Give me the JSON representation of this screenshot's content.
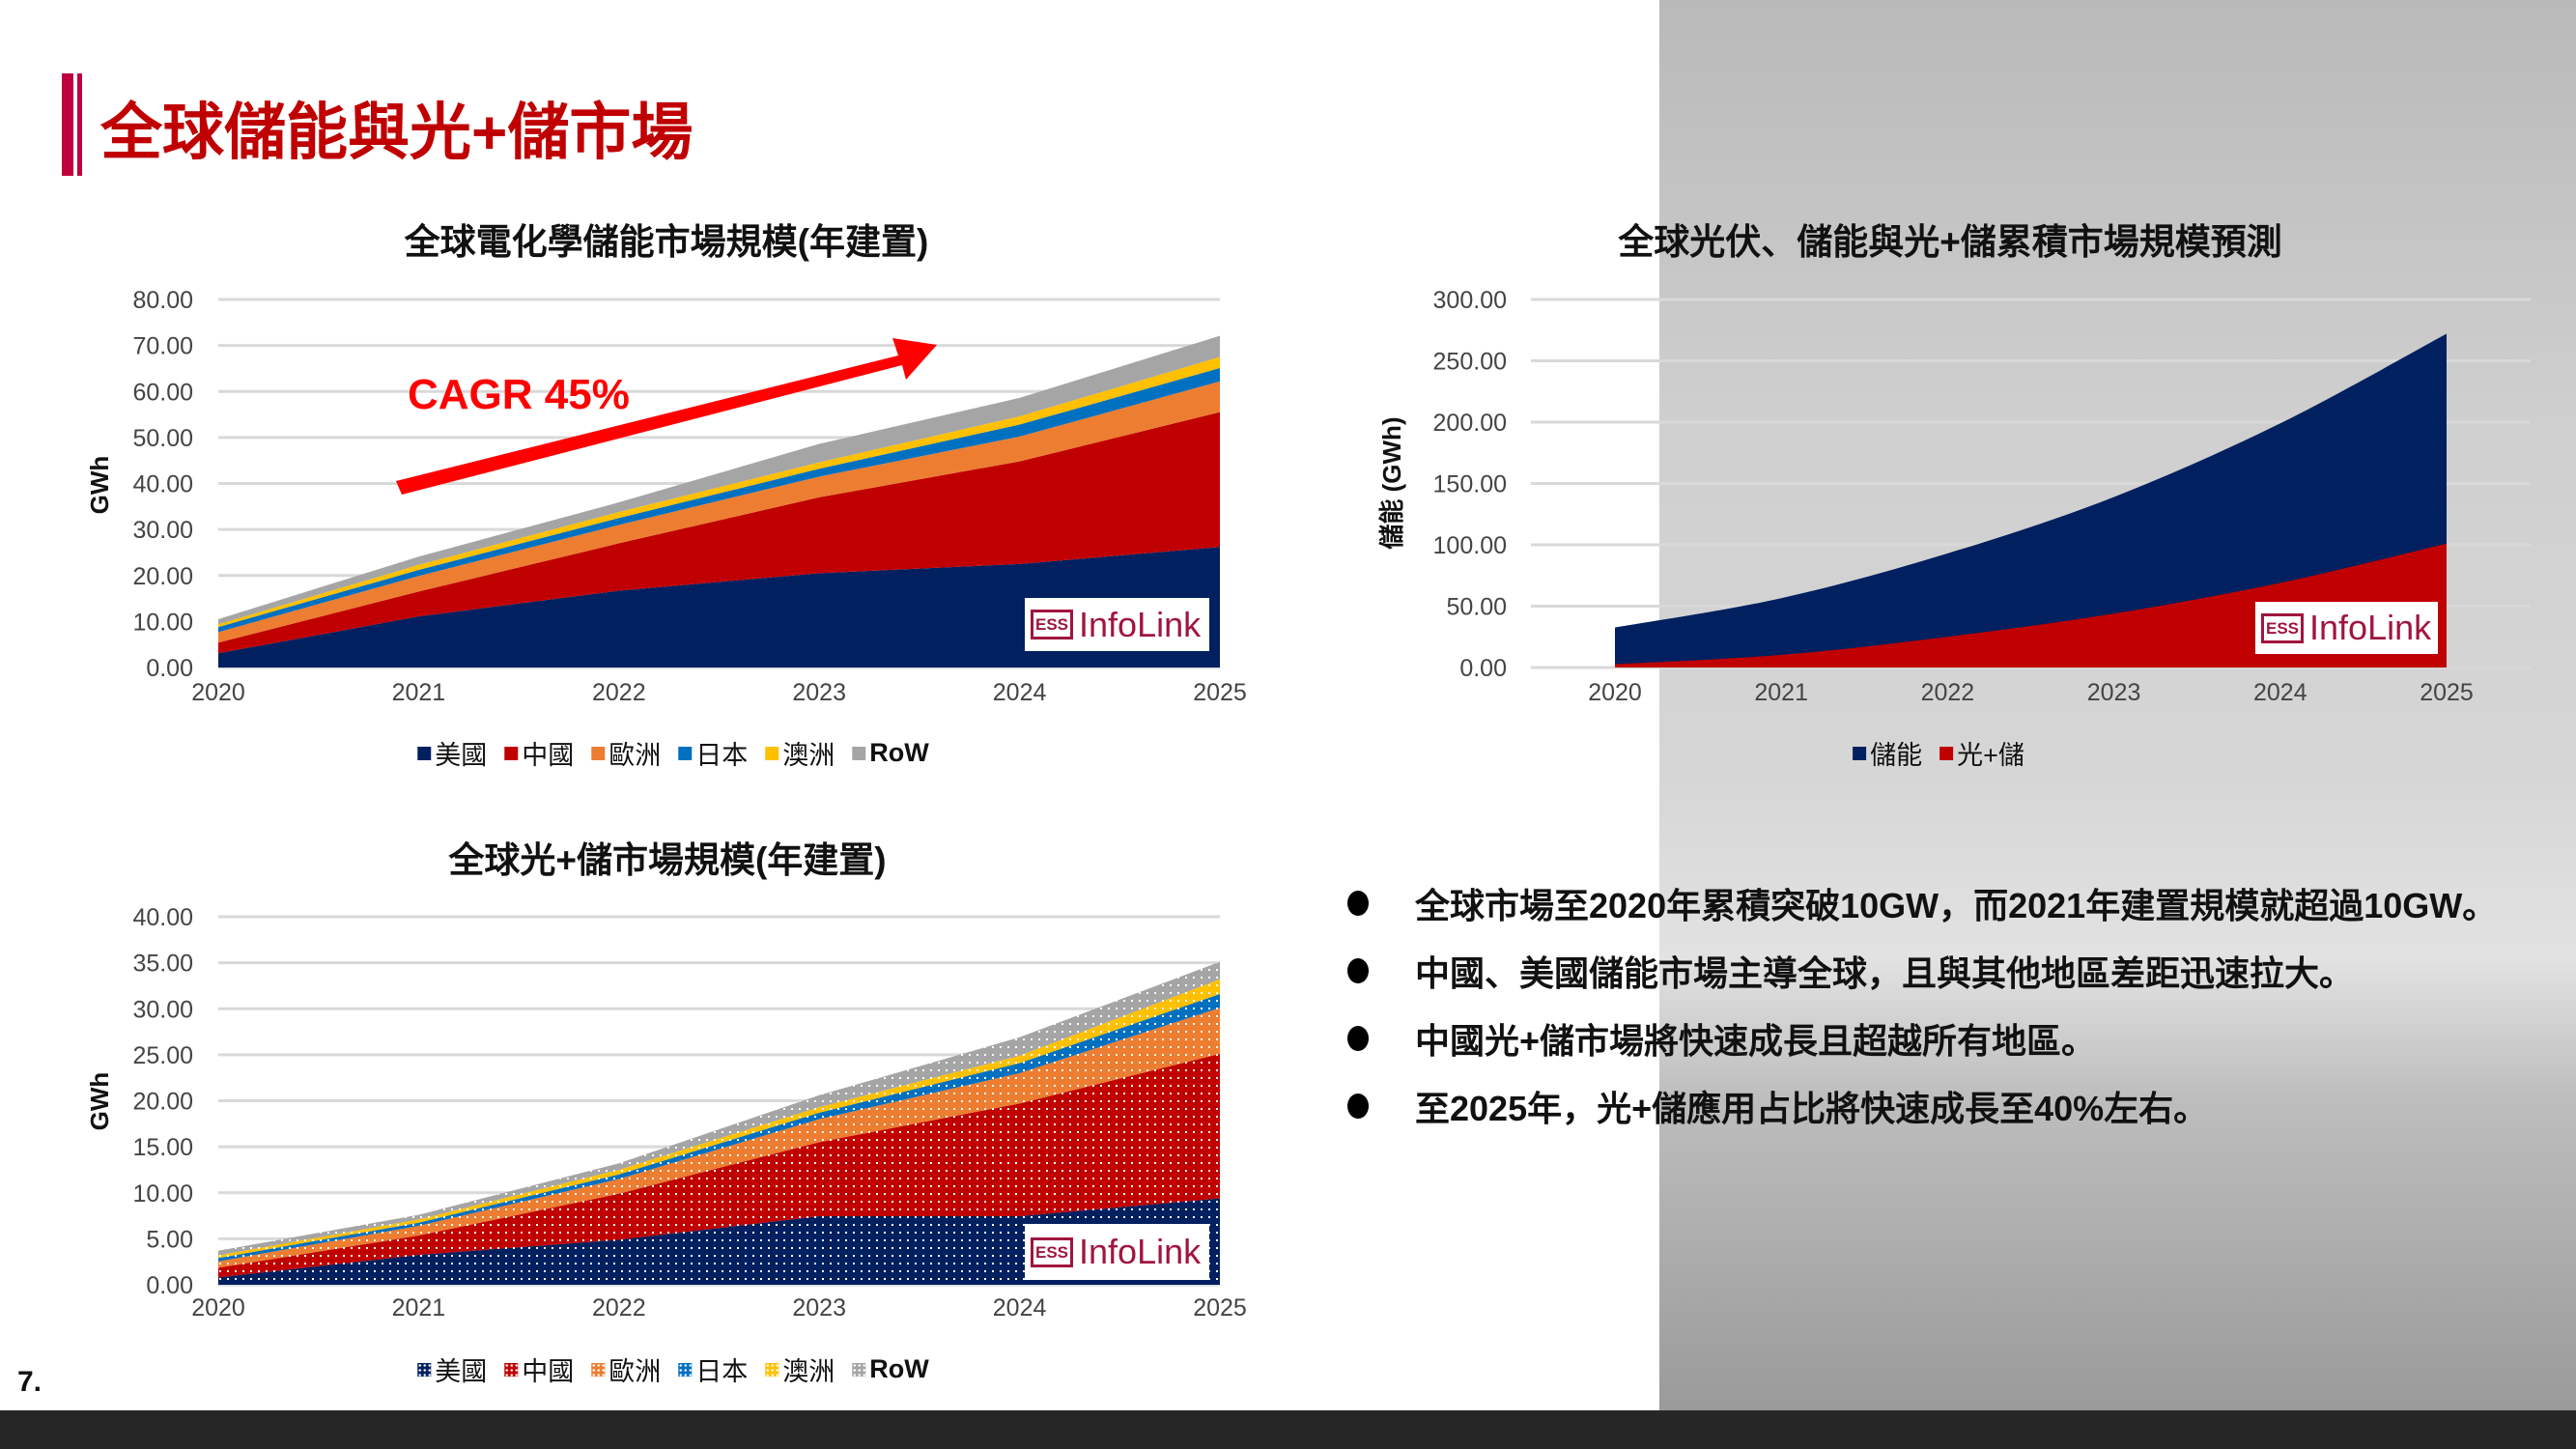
{
  "header": {
    "title": "全球儲能與光+儲市場"
  },
  "page_number": "7.",
  "bullets": [
    "全球市場至2020年累積突破10GW，而2021年建置規模就超過10GW。",
    "中國、美國儲能市場主導全球，且與其他地區差距迅速拉大。",
    "中國光+儲市場將快速成長且超越所有地區。",
    "至2025年，光+儲應用占比將快速成長至40%左右。"
  ],
  "logo": {
    "ess": "ESS",
    "name": "InfoLink"
  },
  "annotation": {
    "cagr": "CAGR 45%"
  },
  "chart_data": [
    {
      "type": "area",
      "stacked": true,
      "title": "全球電化學儲能市場規模(年建置)",
      "ylabel": "GWh",
      "xlabel": "",
      "x": [
        "2020",
        "2021",
        "2022",
        "2023",
        "2024",
        "2025"
      ],
      "ylim": [
        0,
        80
      ],
      "yticks": [
        "0.00",
        "10.00",
        "20.00",
        "30.00",
        "40.00",
        "50.00",
        "60.00",
        "70.00",
        "80.00"
      ],
      "grid": true,
      "legend": "bottom",
      "series": [
        {
          "name": "美國",
          "color": "#002060",
          "values": [
            3.1,
            11.1,
            16.7,
            20.5,
            22.5,
            26.2
          ]
        },
        {
          "name": "中國",
          "color": "#c00000",
          "values": [
            2.3,
            5.4,
            10.3,
            16.5,
            22.3,
            29.3
          ]
        },
        {
          "name": "歐洲",
          "color": "#ed7d31",
          "values": [
            2.3,
            3.4,
            4.0,
            4.5,
            5.4,
            6.7
          ]
        },
        {
          "name": "日本",
          "color": "#0070c0",
          "values": [
            1.1,
            1.3,
            1.5,
            1.7,
            2.6,
            2.9
          ]
        },
        {
          "name": "澳洲",
          "color": "#ffc000",
          "values": [
            0.6,
            1.1,
            1.3,
            1.4,
            1.8,
            2.4
          ]
        },
        {
          "name": "RoW",
          "color": "#a5a5a5",
          "values": [
            1.1,
            1.8,
            2.1,
            4.0,
            4.0,
            4.6
          ]
        }
      ]
    },
    {
      "type": "area",
      "stacked": true,
      "title": "全球光+儲市場規模(年建置)",
      "ylabel": "GWh",
      "xlabel": "",
      "x": [
        "2020",
        "2021",
        "2022",
        "2023",
        "2024",
        "2025"
      ],
      "ylim": [
        0,
        40
      ],
      "yticks": [
        "0.00",
        "5.00",
        "10.00",
        "15.00",
        "20.00",
        "25.00",
        "30.00",
        "35.00",
        "40.00"
      ],
      "grid": true,
      "legend": "bottom",
      "pattern": "dotted",
      "series": [
        {
          "name": "美國",
          "color": "#002060",
          "values": [
            0.8,
            3.25,
            4.9,
            7.45,
            7.45,
            9.4
          ]
        },
        {
          "name": "中國",
          "color": "#c00000",
          "values": [
            1.05,
            2.1,
            5.0,
            8.05,
            12.25,
            15.7
          ]
        },
        {
          "name": "歐洲",
          "color": "#ed7d31",
          "values": [
            0.7,
            1.05,
            1.6,
            2.5,
            3.3,
            5.0
          ]
        },
        {
          "name": "日本",
          "color": "#0070c0",
          "values": [
            0.35,
            0.35,
            0.5,
            0.7,
            1.1,
            1.5
          ]
        },
        {
          "name": "澳洲",
          "color": "#ffc000",
          "values": [
            0.3,
            0.35,
            0.5,
            0.6,
            0.8,
            1.6
          ]
        },
        {
          "name": "RoW",
          "color": "#a5a5a5",
          "values": [
            0.5,
            0.5,
            0.7,
            1.3,
            2.0,
            1.9
          ]
        }
      ]
    },
    {
      "type": "area",
      "stacked": false,
      "title": "全球光伏、儲能與光+儲累積市場規模預測",
      "ylabel": "儲能 (GWh)",
      "xlabel": "",
      "x": [
        "2020",
        "2021",
        "2022",
        "2023",
        "2024",
        "2025"
      ],
      "ylim": [
        0,
        300
      ],
      "yticks": [
        "0.00",
        "50.00",
        "100.00",
        "150.00",
        "200.00",
        "250.00",
        "300.00"
      ],
      "grid": true,
      "legend": "bottom",
      "series": [
        {
          "name": "儲能",
          "color": "#002060",
          "values": [
            32.6,
            56.5,
            93,
            139,
            199,
            272
          ]
        },
        {
          "name": "光+儲",
          "color": "#c00000",
          "values": [
            2.7,
            10.3,
            25,
            44,
            69,
            101
          ]
        }
      ]
    }
  ]
}
